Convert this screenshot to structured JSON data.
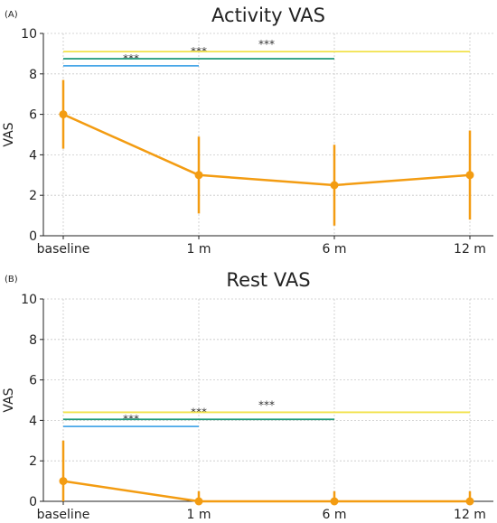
{
  "chart_data": [
    {
      "type": "line",
      "panel_label": "(A)",
      "title": "Activity VAS",
      "ylabel": "VAS",
      "xlabel": "",
      "categories": [
        "baseline",
        "1 m",
        "6 m",
        "12 m"
      ],
      "ylim": [
        0,
        10
      ],
      "yticks": [
        0,
        2,
        4,
        6,
        8,
        10
      ],
      "grid": true,
      "series": [
        {
          "values": [
            6.0,
            3.0,
            2.5,
            3.0
          ],
          "error_low": [
            4.3,
            1.1,
            0.5,
            0.8
          ],
          "error_high": [
            7.7,
            4.9,
            4.5,
            5.2
          ],
          "color": "#f39c12"
        }
      ],
      "significance": [
        {
          "from": "baseline",
          "to": "1 m",
          "y": 8.4,
          "label": "***",
          "color": "#4aa8e8"
        },
        {
          "from": "baseline",
          "to": "6 m",
          "y": 8.75,
          "label": "***",
          "color": "#1f9a7a"
        },
        {
          "from": "baseline",
          "to": "12 m",
          "y": 9.1,
          "label": "***",
          "color": "#f2e24a"
        }
      ]
    },
    {
      "type": "line",
      "panel_label": "(B)",
      "title": "Rest VAS",
      "ylabel": "VAS",
      "xlabel": "",
      "categories": [
        "baseline",
        "1 m",
        "6 m",
        "12 m"
      ],
      "ylim": [
        0,
        10
      ],
      "yticks": [
        0,
        2,
        4,
        6,
        8,
        10
      ],
      "grid": true,
      "series": [
        {
          "values": [
            1.0,
            0.0,
            0.0,
            0.0
          ],
          "error_low": [
            0.0,
            0.0,
            0.0,
            0.0
          ],
          "error_high": [
            3.0,
            0.5,
            0.5,
            0.5
          ],
          "color": "#f39c12"
        }
      ],
      "significance": [
        {
          "from": "baseline",
          "to": "1 m",
          "y": 3.7,
          "label": "***",
          "color": "#4aa8e8"
        },
        {
          "from": "baseline",
          "to": "6 m",
          "y": 4.05,
          "label": "***",
          "color": "#1f9a7a"
        },
        {
          "from": "baseline",
          "to": "12 m",
          "y": 4.4,
          "label": "***",
          "color": "#f2e24a"
        }
      ]
    }
  ]
}
